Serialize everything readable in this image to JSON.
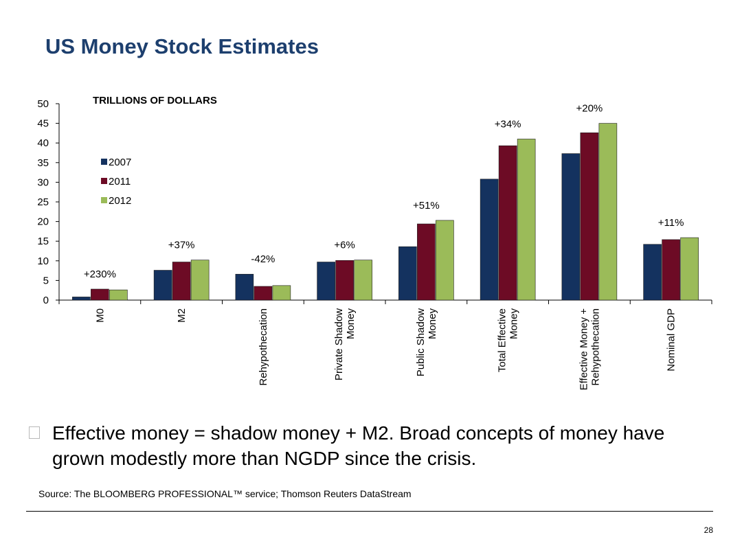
{
  "slide": {
    "title": "US Money Stock Estimates",
    "bullet": "Effective money = shadow money + M2. Broad concepts of money have grown modestly more than NGDP since the crisis.",
    "source": "Source: The BLOOMBERG PROFESSIONAL™ service; Thomson Reuters DataStream",
    "page_number": "28"
  },
  "chart_data": {
    "type": "bar",
    "title": "TRILLIONS OF DOLLARS",
    "categories": [
      [
        "M0"
      ],
      [
        "M2"
      ],
      [
        "Rehypothecation"
      ],
      [
        "Private Shadow",
        "Money"
      ],
      [
        "Public Shadow",
        "Money"
      ],
      [
        "Total Effective",
        "Money"
      ],
      [
        "Effective Money +",
        "Rehypothecation"
      ],
      [
        "Nominal GDP"
      ]
    ],
    "series": [
      {
        "name": "2007",
        "color": "#14325f",
        "values": [
          0.8,
          7.6,
          6.6,
          9.7,
          13.6,
          30.8,
          37.3,
          14.2
        ]
      },
      {
        "name": "2011",
        "color": "#6d0b25",
        "values": [
          2.8,
          9.7,
          3.5,
          10.1,
          19.4,
          39.3,
          42.6,
          15.4
        ]
      },
      {
        "name": "2012",
        "color": "#9bbb59",
        "values": [
          2.6,
          10.2,
          3.7,
          10.2,
          20.3,
          41.0,
          45.0,
          15.9
        ]
      }
    ],
    "annotations": [
      "+230%",
      "+37%",
      "-42%",
      "+6%",
      "+51%",
      "+34%",
      "+20%",
      "+11%"
    ],
    "ylim": [
      0,
      50
    ],
    "yticks": [
      0,
      5,
      10,
      15,
      20,
      25,
      30,
      35,
      40,
      45,
      50
    ],
    "legend_position": "top-left",
    "grid": false
  }
}
